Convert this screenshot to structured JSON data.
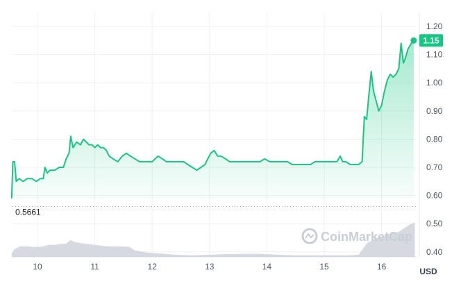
{
  "chart_data": {
    "type": "area",
    "currency": "USD",
    "current_price_label": "1.15",
    "low_price_label": "0.5661",
    "ylim": [
      0.38,
      1.22
    ],
    "y_ticks": [
      "1.20",
      "1.10",
      "1.00",
      "0.90",
      "0.80",
      "0.70",
      "0.60",
      "0.50",
      "0.40"
    ],
    "x_ticks": [
      "10",
      "11",
      "12",
      "13",
      "14",
      "15",
      "16"
    ],
    "xlim": [
      9.55,
      16.58
    ],
    "grid": true,
    "watermark": "CoinMarketCap",
    "colors": {
      "line": "#16c784",
      "fill": "#16c784",
      "badge": "#16c784",
      "volume": "#cfd4db",
      "grid": "#eef0f3"
    },
    "series": [
      {
        "values": [
          [
            9.55,
            0.59
          ],
          [
            9.57,
            0.72
          ],
          [
            9.6,
            0.72
          ],
          [
            9.63,
            0.65
          ],
          [
            9.68,
            0.66
          ],
          [
            9.75,
            0.65
          ],
          [
            9.82,
            0.66
          ],
          [
            9.9,
            0.66
          ],
          [
            9.98,
            0.65
          ],
          [
            10.05,
            0.66
          ],
          [
            10.1,
            0.66
          ],
          [
            10.13,
            0.7
          ],
          [
            10.17,
            0.68
          ],
          [
            10.22,
            0.69
          ],
          [
            10.3,
            0.69
          ],
          [
            10.38,
            0.7
          ],
          [
            10.45,
            0.7
          ],
          [
            10.5,
            0.73
          ],
          [
            10.55,
            0.75
          ],
          [
            10.58,
            0.81
          ],
          [
            10.62,
            0.77
          ],
          [
            10.68,
            0.79
          ],
          [
            10.75,
            0.78
          ],
          [
            10.8,
            0.8
          ],
          [
            10.85,
            0.79
          ],
          [
            10.9,
            0.78
          ],
          [
            10.95,
            0.78
          ],
          [
            11.0,
            0.77
          ],
          [
            11.05,
            0.78
          ],
          [
            11.1,
            0.77
          ],
          [
            11.15,
            0.77
          ],
          [
            11.2,
            0.76
          ],
          [
            11.25,
            0.74
          ],
          [
            11.32,
            0.73
          ],
          [
            11.4,
            0.72
          ],
          [
            11.48,
            0.74
          ],
          [
            11.55,
            0.75
          ],
          [
            11.62,
            0.74
          ],
          [
            11.7,
            0.73
          ],
          [
            11.78,
            0.72
          ],
          [
            11.85,
            0.72
          ],
          [
            11.92,
            0.72
          ],
          [
            12.0,
            0.72
          ],
          [
            12.05,
            0.73
          ],
          [
            12.1,
            0.74
          ],
          [
            12.18,
            0.73
          ],
          [
            12.25,
            0.72
          ],
          [
            12.32,
            0.72
          ],
          [
            12.4,
            0.72
          ],
          [
            12.48,
            0.72
          ],
          [
            12.55,
            0.72
          ],
          [
            12.62,
            0.71
          ],
          [
            12.7,
            0.7
          ],
          [
            12.78,
            0.69
          ],
          [
            12.85,
            0.7
          ],
          [
            12.92,
            0.71
          ],
          [
            12.97,
            0.73
          ],
          [
            13.02,
            0.75
          ],
          [
            13.08,
            0.76
          ],
          [
            13.14,
            0.74
          ],
          [
            13.2,
            0.74
          ],
          [
            13.28,
            0.73
          ],
          [
            13.35,
            0.72
          ],
          [
            13.42,
            0.72
          ],
          [
            13.5,
            0.72
          ],
          [
            13.58,
            0.72
          ],
          [
            13.65,
            0.72
          ],
          [
            13.72,
            0.72
          ],
          [
            13.8,
            0.72
          ],
          [
            13.88,
            0.72
          ],
          [
            13.96,
            0.73
          ],
          [
            14.05,
            0.72
          ],
          [
            14.12,
            0.72
          ],
          [
            14.2,
            0.72
          ],
          [
            14.28,
            0.72
          ],
          [
            14.36,
            0.72
          ],
          [
            14.44,
            0.71
          ],
          [
            14.52,
            0.71
          ],
          [
            14.6,
            0.71
          ],
          [
            14.68,
            0.71
          ],
          [
            14.76,
            0.71
          ],
          [
            14.84,
            0.72
          ],
          [
            14.92,
            0.72
          ],
          [
            15.0,
            0.72
          ],
          [
            15.08,
            0.72
          ],
          [
            15.16,
            0.72
          ],
          [
            15.22,
            0.72
          ],
          [
            15.28,
            0.74
          ],
          [
            15.32,
            0.72
          ],
          [
            15.38,
            0.72
          ],
          [
            15.45,
            0.71
          ],
          [
            15.52,
            0.71
          ],
          [
            15.6,
            0.71
          ],
          [
            15.66,
            0.72
          ],
          [
            15.7,
            0.88
          ],
          [
            15.74,
            0.87
          ],
          [
            15.78,
            0.96
          ],
          [
            15.82,
            1.04
          ],
          [
            15.86,
            0.97
          ],
          [
            15.9,
            0.94
          ],
          [
            15.95,
            0.9
          ],
          [
            16.0,
            0.92
          ],
          [
            16.05,
            0.97
          ],
          [
            16.1,
            1.01
          ],
          [
            16.15,
            1.03
          ],
          [
            16.2,
            1.02
          ],
          [
            16.25,
            1.03
          ],
          [
            16.3,
            1.05
          ],
          [
            16.34,
            1.14
          ],
          [
            16.38,
            1.07
          ],
          [
            16.42,
            1.09
          ],
          [
            16.46,
            1.12
          ],
          [
            16.52,
            1.14
          ],
          [
            16.56,
            1.15
          ]
        ]
      }
    ],
    "volume": [
      [
        9.55,
        0.395
      ],
      [
        9.6,
        0.41
      ],
      [
        9.7,
        0.42
      ],
      [
        9.8,
        0.42
      ],
      [
        9.9,
        0.418
      ],
      [
        10.0,
        0.418
      ],
      [
        10.1,
        0.42
      ],
      [
        10.2,
        0.425
      ],
      [
        10.3,
        0.425
      ],
      [
        10.4,
        0.428
      ],
      [
        10.5,
        0.43
      ],
      [
        10.58,
        0.442
      ],
      [
        10.65,
        0.435
      ],
      [
        10.8,
        0.43
      ],
      [
        11.0,
        0.425
      ],
      [
        11.2,
        0.42
      ],
      [
        11.4,
        0.42
      ],
      [
        11.6,
        0.418
      ],
      [
        11.7,
        0.405
      ],
      [
        11.9,
        0.398
      ],
      [
        12.1,
        0.395
      ],
      [
        12.4,
        0.39
      ],
      [
        12.7,
        0.388
      ],
      [
        13.0,
        0.39
      ],
      [
        13.3,
        0.392
      ],
      [
        13.6,
        0.393
      ],
      [
        13.9,
        0.393
      ],
      [
        14.2,
        0.39
      ],
      [
        14.5,
        0.388
      ],
      [
        14.8,
        0.388
      ],
      [
        15.1,
        0.388
      ],
      [
        15.4,
        0.388
      ],
      [
        15.6,
        0.39
      ],
      [
        15.75,
        0.432
      ],
      [
        15.9,
        0.448
      ],
      [
        16.1,
        0.46
      ],
      [
        16.3,
        0.472
      ],
      [
        16.5,
        0.498
      ],
      [
        16.58,
        0.505
      ]
    ]
  }
}
